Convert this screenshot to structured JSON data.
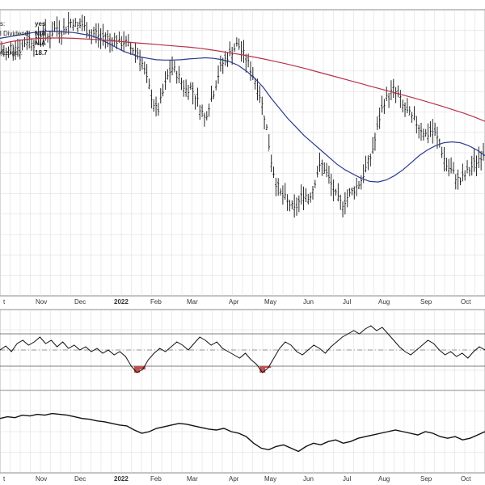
{
  "header": {
    "rows": [
      {
        "label": "s:",
        "value": "yes"
      },
      {
        "label": "l Dividend:",
        "value": "N/A"
      },
      {
        "label": "",
        "value": "N/A"
      },
      {
        "label": "(Large):",
        "value": "18.7"
      }
    ]
  },
  "chart_data": {
    "type": "line",
    "title": "",
    "x_labels": [
      {
        "label": "t",
        "bold": false
      },
      {
        "label": "Nov",
        "bold": false
      },
      {
        "label": "Dec",
        "bold": false
      },
      {
        "label": "2022",
        "bold": true
      },
      {
        "label": "Feb",
        "bold": false
      },
      {
        "label": "Mar",
        "bold": false
      },
      {
        "label": "Apr",
        "bold": false
      },
      {
        "label": "May",
        "bold": false
      },
      {
        "label": "Jun",
        "bold": false
      },
      {
        "label": "Jul",
        "bold": false
      },
      {
        "label": "Aug",
        "bold": false
      },
      {
        "label": "Sep",
        "bold": false
      },
      {
        "label": "Oct",
        "bold": false
      }
    ],
    "colors": {
      "price": "#111111",
      "ma_short": "#2b3a8c",
      "ma_long": "#b8314a",
      "oversold_fill": "#c0504d",
      "grid": "#d8d8d8"
    },
    "price_panel": {
      "type": "ohlc",
      "legend": "none",
      "y_range": [
        0,
        100
      ],
      "series_close": [
        86,
        84,
        87,
        88,
        86,
        89,
        90,
        88,
        91,
        92,
        90,
        93,
        94,
        92,
        95,
        96,
        94,
        95,
        93,
        91,
        92,
        90,
        91,
        89,
        90,
        88,
        89,
        87,
        86,
        85,
        80,
        74,
        68,
        64,
        70,
        76,
        80,
        78,
        75,
        72,
        73,
        70,
        66,
        62,
        67,
        72,
        78,
        82,
        84,
        86,
        88,
        85,
        82,
        78,
        74,
        68,
        60,
        48,
        40,
        36,
        34,
        32,
        30,
        33,
        36,
        34,
        38,
        44,
        46,
        42,
        38,
        34,
        32,
        34,
        36,
        38,
        40,
        44,
        48,
        54,
        62,
        68,
        70,
        72,
        70,
        66,
        64,
        62,
        60,
        58,
        56,
        58,
        56,
        52,
        46,
        44,
        42,
        40,
        42,
        44,
        46,
        48,
        50
      ],
      "ma_short": [
        90,
        90.5,
        91,
        91.5,
        92,
        92.3,
        92.5,
        92.4,
        92.2,
        92,
        91.5,
        91,
        90,
        88.5,
        87,
        85.5,
        84.5,
        83.5,
        83,
        82.5,
        82.4,
        82.4,
        82.5,
        82.8,
        83,
        83.2,
        83,
        82.5,
        81.8,
        80.5,
        78.5,
        76,
        73,
        69,
        65.5,
        62,
        59,
        56,
        53.5,
        51,
        48.5,
        46,
        44,
        42.5,
        41,
        40,
        39.8,
        40.5,
        42,
        44,
        46.5,
        49,
        51,
        52.5,
        53.5,
        53.8,
        53.5,
        52.5,
        51,
        49
      ],
      "ma_long": [
        88,
        88.8,
        89.4,
        89.8,
        90,
        90.1,
        90.1,
        90,
        89.8,
        89.6,
        89.3,
        89,
        88.7,
        88.4,
        88.1,
        87.8,
        87.5,
        87.2,
        86.9,
        86.5,
        86,
        85.4,
        84.8,
        84.2,
        83.5,
        82.8,
        82,
        81.2,
        80.3,
        79.4,
        78.4,
        77.4,
        76.4,
        75.4,
        74.4,
        73.4,
        72.4,
        71.4,
        70.4,
        69.4,
        68.4,
        67.3,
        66.2,
        65,
        63.8,
        62.5,
        61
      ]
    },
    "oscillator_panel": {
      "type": "line",
      "y_range": [
        0,
        100
      ],
      "upper_band": 70,
      "mid_line": 50,
      "lower_band": 30,
      "values": [
        50,
        55,
        48,
        58,
        62,
        56,
        60,
        66,
        58,
        62,
        54,
        60,
        52,
        56,
        50,
        54,
        48,
        52,
        46,
        50,
        44,
        48,
        42,
        30,
        22,
        26,
        38,
        46,
        52,
        48,
        54,
        60,
        56,
        50,
        58,
        66,
        62,
        56,
        60,
        52,
        48,
        44,
        40,
        46,
        38,
        32,
        22,
        28,
        40,
        52,
        60,
        56,
        48,
        44,
        50,
        56,
        52,
        46,
        54,
        60,
        66,
        70,
        74,
        70,
        76,
        80,
        74,
        78,
        70,
        62,
        54,
        48,
        44,
        50,
        56,
        62,
        58,
        50,
        44,
        48,
        42,
        46,
        40,
        48,
        54,
        50
      ]
    },
    "relative_panel": {
      "type": "line",
      "y_range": [
        0,
        100
      ],
      "values": [
        66,
        68,
        67,
        70,
        69,
        71,
        70,
        72,
        71,
        70,
        68,
        66,
        65,
        63,
        62,
        60,
        58,
        57,
        52,
        48,
        50,
        54,
        56,
        58,
        60,
        59,
        57,
        55,
        53,
        52,
        54,
        50,
        48,
        44,
        36,
        30,
        28,
        32,
        34,
        30,
        26,
        32,
        36,
        34,
        38,
        40,
        36,
        38,
        42,
        44,
        46,
        48,
        50,
        52,
        50,
        48,
        46,
        50,
        48,
        44,
        42,
        44,
        40,
        42,
        46,
        50
      ]
    }
  }
}
